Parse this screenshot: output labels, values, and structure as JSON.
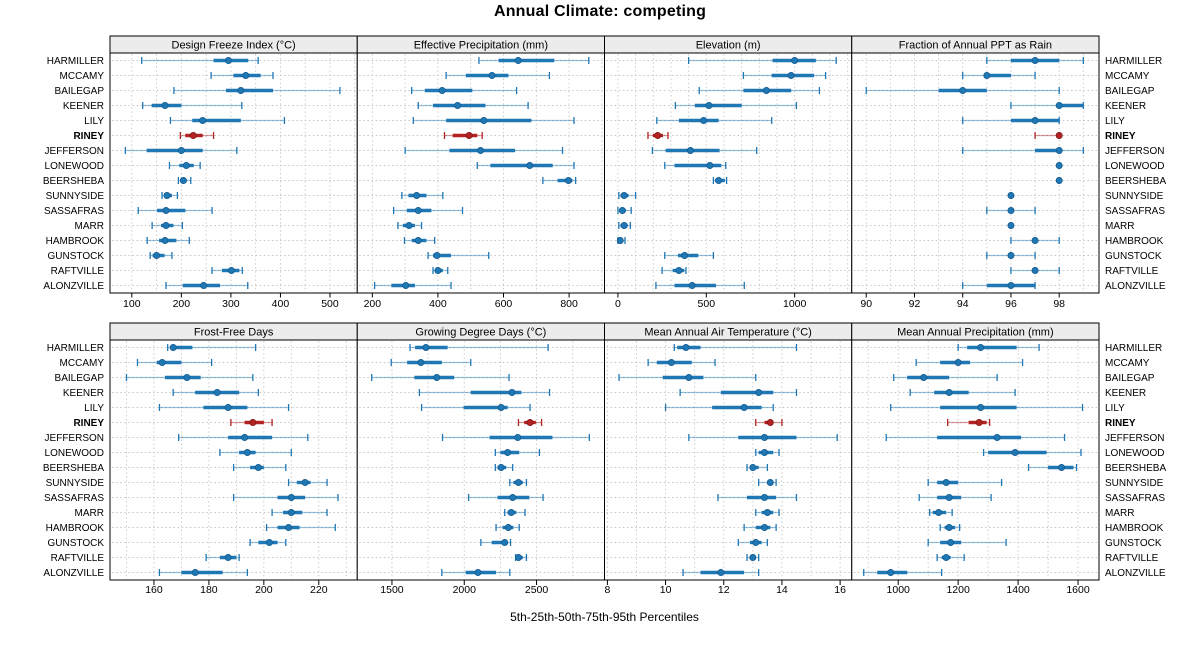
{
  "title": "Annual Climate: competing",
  "xlabel": "5th-25th-50th-75th-95th Percentiles",
  "colors": {
    "series_blue": "#1F77B4",
    "series_blue_dark": "#11568C",
    "highlight_red": "#B22222",
    "highlight_red_dark": "#7E1414",
    "grid": "#C6C6C6",
    "strip_bg": "#ECECEC",
    "border": "#000000",
    "text": "#000000"
  },
  "chart_data": {
    "type": "dotplot-percentiles",
    "percentile_labels": [
      "5th",
      "25th",
      "50th",
      "75th",
      "95th"
    ],
    "legend_position": "none",
    "grid": "dotted",
    "sites": [
      "HARMILLER",
      "MCCAMY",
      "BAILEGAP",
      "KEENER",
      "LILY",
      "RINEY",
      "JEFFERSON",
      "LONEWOOD",
      "BEERSHEBA",
      "SUNNYSIDE",
      "SASSAFRAS",
      "MARR",
      "HAMBROOK",
      "GUNSTOCK",
      "RAFTVILLE",
      "ALONZVILLE"
    ],
    "highlighted_site": "RINEY",
    "panels": [
      {
        "title": "Design Freeze Index (°C)",
        "row": 0,
        "col": 0,
        "xlim": [
          56,
          555
        ],
        "ticks": [
          100,
          200,
          300,
          400,
          500
        ],
        "grid_step": 50,
        "values": [
          [
            120,
            265,
            295,
            335,
            355
          ],
          [
            260,
            305,
            330,
            360,
            385
          ],
          [
            185,
            290,
            320,
            385,
            520
          ],
          [
            122,
            140,
            167,
            200,
            322
          ],
          [
            178,
            222,
            243,
            320,
            408
          ],
          [
            198,
            208,
            224,
            243,
            265
          ],
          [
            87,
            130,
            200,
            243,
            312
          ],
          [
            176,
            196,
            210,
            225,
            238
          ],
          [
            194,
            199,
            204,
            211,
            219
          ],
          [
            161,
            166,
            171,
            181,
            192
          ],
          [
            113,
            151,
            169,
            208,
            262
          ],
          [
            141,
            159,
            169,
            184,
            202
          ],
          [
            131,
            155,
            167,
            190,
            216
          ],
          [
            137,
            142,
            150,
            166,
            181
          ],
          [
            262,
            282,
            301,
            317,
            323
          ],
          [
            169,
            203,
            245,
            278,
            334
          ]
        ]
      },
      {
        "title": "Effective Precipitation (mm)",
        "row": 0,
        "col": 1,
        "xlim": [
          154,
          908
        ],
        "ticks": [
          200,
          400,
          600,
          800
        ],
        "grid_step": 100,
        "values": [
          [
            525,
            585,
            645,
            755,
            860
          ],
          [
            425,
            485,
            565,
            615,
            740
          ],
          [
            320,
            360,
            413,
            505,
            640
          ],
          [
            340,
            385,
            460,
            545,
            675
          ],
          [
            325,
            425,
            540,
            685,
            815
          ],
          [
            420,
            445,
            495,
            520,
            535
          ],
          [
            300,
            435,
            530,
            635,
            780
          ],
          [
            520,
            560,
            680,
            750,
            815
          ],
          [
            720,
            765,
            798,
            810,
            820
          ],
          [
            290,
            310,
            335,
            365,
            415
          ],
          [
            265,
            305,
            340,
            380,
            475
          ],
          [
            278,
            293,
            312,
            330,
            350
          ],
          [
            298,
            320,
            340,
            365,
            390
          ],
          [
            370,
            385,
            397,
            440,
            555
          ],
          [
            385,
            392,
            400,
            415,
            430
          ],
          [
            207,
            258,
            302,
            330,
            440
          ]
        ]
      },
      {
        "title": "Elevation (m)",
        "row": 0,
        "col": 2,
        "xlim": [
          -76,
          1323
        ],
        "ticks": [
          0,
          500,
          1000
        ],
        "grid_step": 100,
        "values": [
          [
            400,
            875,
            1000,
            1120,
            1235
          ],
          [
            710,
            870,
            980,
            1110,
            1175
          ],
          [
            460,
            710,
            840,
            980,
            1140
          ],
          [
            325,
            435,
            515,
            700,
            1010
          ],
          [
            220,
            345,
            485,
            570,
            870
          ],
          [
            170,
            198,
            225,
            255,
            283
          ],
          [
            195,
            270,
            410,
            575,
            785
          ],
          [
            265,
            320,
            520,
            585,
            610
          ],
          [
            540,
            550,
            570,
            605,
            615
          ],
          [
            5,
            15,
            35,
            60,
            100
          ],
          [
            0,
            10,
            25,
            45,
            75
          ],
          [
            5,
            15,
            35,
            55,
            70
          ],
          [
            0,
            5,
            13,
            25,
            40
          ],
          [
            265,
            340,
            377,
            455,
            540
          ],
          [
            250,
            310,
            345,
            375,
            385
          ],
          [
            215,
            320,
            420,
            555,
            715
          ]
        ]
      },
      {
        "title": "Fraction of Annual PPT as Rain",
        "row": 0,
        "col": 3,
        "xlim": [
          89.4,
          99.65
        ],
        "ticks": [
          90,
          92,
          94,
          96,
          98
        ],
        "grid_step": 1,
        "values": [
          [
            95,
            96,
            97,
            98,
            99
          ],
          [
            94,
            95,
            95,
            96,
            97
          ],
          [
            90,
            93,
            94,
            95,
            98
          ],
          [
            96,
            98,
            98,
            99,
            99
          ],
          [
            94,
            96,
            97,
            98,
            98
          ],
          [
            97,
            98,
            98,
            98,
            98
          ],
          [
            94,
            97,
            98,
            98,
            99
          ],
          [
            98,
            98,
            98,
            98,
            98
          ],
          [
            98,
            98,
            98,
            98,
            98
          ],
          [
            96,
            96,
            96,
            96,
            96
          ],
          [
            95,
            96,
            96,
            96,
            97
          ],
          [
            96,
            96,
            96,
            96,
            96
          ],
          [
            96,
            97,
            97,
            97,
            98
          ],
          [
            95,
            96,
            96,
            96,
            97
          ],
          [
            96,
            97,
            97,
            97,
            98
          ],
          [
            94,
            95,
            96,
            97,
            97
          ]
        ]
      },
      {
        "title": "Frost-Free Days",
        "row": 1,
        "col": 0,
        "xlim": [
          144,
          234
        ],
        "ticks": [
          160,
          180,
          200,
          220
        ],
        "grid_step": 10,
        "values": [
          [
            165,
            166,
            167,
            174,
            197
          ],
          [
            154,
            161,
            163,
            170,
            181
          ],
          [
            150,
            164,
            172,
            177,
            196
          ],
          [
            167,
            175,
            183,
            191,
            198
          ],
          [
            162,
            178,
            187,
            194,
            209
          ],
          [
            188,
            193,
            196,
            200,
            203
          ],
          [
            169,
            187,
            193,
            203,
            216
          ],
          [
            184,
            191,
            194,
            197,
            210
          ],
          [
            189,
            195,
            198,
            200,
            208
          ],
          [
            209,
            212,
            215,
            217,
            223
          ],
          [
            189,
            205,
            210,
            215,
            227
          ],
          [
            203,
            207,
            210,
            214,
            223
          ],
          [
            201,
            205,
            209,
            213,
            226
          ],
          [
            195,
            198,
            202,
            205,
            208
          ],
          [
            179,
            184,
            187,
            190,
            191
          ],
          [
            162,
            170,
            175,
            185,
            194
          ]
        ]
      },
      {
        "title": "Growing Degree Days (°C)",
        "row": 1,
        "col": 1,
        "xlim": [
          1260,
          2970
        ],
        "ticks": [
          1500,
          2000,
          2500
        ],
        "grid_step": 250,
        "values": [
          [
            1625,
            1660,
            1735,
            1885,
            2580
          ],
          [
            1495,
            1605,
            1700,
            1845,
            2045
          ],
          [
            1360,
            1655,
            1810,
            1930,
            2310
          ],
          [
            1690,
            2045,
            2330,
            2395,
            2590
          ],
          [
            1705,
            1995,
            2255,
            2300,
            2455
          ],
          [
            2375,
            2415,
            2455,
            2495,
            2535
          ],
          [
            1850,
            2175,
            2370,
            2610,
            2865
          ],
          [
            2215,
            2250,
            2300,
            2380,
            2520
          ],
          [
            2215,
            2230,
            2255,
            2290,
            2335
          ],
          [
            2315,
            2340,
            2375,
            2405,
            2430
          ],
          [
            2030,
            2230,
            2335,
            2450,
            2545
          ],
          [
            2280,
            2300,
            2325,
            2360,
            2420
          ],
          [
            2220,
            2265,
            2305,
            2340,
            2380
          ],
          [
            2115,
            2190,
            2280,
            2300,
            2320
          ],
          [
            2355,
            2360,
            2375,
            2405,
            2430
          ],
          [
            1845,
            2010,
            2095,
            2220,
            2315
          ]
        ]
      },
      {
        "title": "Mean Annual Air Temperature (°C)",
        "row": 1,
        "col": 2,
        "xlim": [
          7.9,
          16.4
        ],
        "ticks": [
          8,
          10,
          12,
          14,
          16
        ],
        "grid_step": 1,
        "values": [
          [
            10.3,
            10.4,
            10.7,
            11.2,
            14.5
          ],
          [
            9.4,
            9.7,
            10.2,
            10.9,
            11.7
          ],
          [
            8.4,
            9.9,
            10.8,
            11.3,
            13.1
          ],
          [
            10.5,
            11.9,
            13.2,
            13.7,
            14.5
          ],
          [
            10.0,
            11.6,
            12.7,
            13.3,
            13.7
          ],
          [
            13.1,
            13.4,
            13.6,
            13.7,
            14.0
          ],
          [
            10.8,
            12.5,
            13.4,
            14.5,
            15.9
          ],
          [
            13.1,
            13.2,
            13.4,
            13.7,
            13.9
          ],
          [
            12.8,
            12.9,
            13.0,
            13.2,
            13.5
          ],
          [
            13.2,
            13.5,
            13.6,
            13.7,
            13.8
          ],
          [
            11.8,
            12.8,
            13.4,
            13.8,
            14.5
          ],
          [
            13.1,
            13.3,
            13.5,
            13.7,
            13.9
          ],
          [
            12.7,
            13.1,
            13.4,
            13.6,
            13.8
          ],
          [
            12.5,
            12.9,
            13.1,
            13.3,
            13.5
          ],
          [
            12.8,
            12.9,
            13.0,
            13.1,
            13.2
          ],
          [
            10.6,
            11.2,
            11.9,
            12.7,
            13.2
          ]
        ]
      },
      {
        "title": "Mean Annual Precipitation (mm)",
        "row": 1,
        "col": 3,
        "xlim": [
          845,
          1670
        ],
        "ticks": [
          1000,
          1200,
          1400,
          1600
        ],
        "grid_step": 100,
        "values": [
          [
            1200,
            1230,
            1275,
            1395,
            1470
          ],
          [
            1060,
            1140,
            1200,
            1240,
            1415
          ],
          [
            985,
            1030,
            1085,
            1170,
            1330
          ],
          [
            1040,
            1120,
            1170,
            1235,
            1390
          ],
          [
            975,
            1140,
            1275,
            1395,
            1615
          ],
          [
            1165,
            1235,
            1270,
            1295,
            1305
          ],
          [
            960,
            1130,
            1330,
            1410,
            1555
          ],
          [
            1285,
            1300,
            1390,
            1495,
            1610
          ],
          [
            1435,
            1500,
            1545,
            1585,
            1595
          ],
          [
            1100,
            1130,
            1160,
            1200,
            1345
          ],
          [
            1070,
            1130,
            1170,
            1210,
            1310
          ],
          [
            1105,
            1115,
            1135,
            1160,
            1180
          ],
          [
            1140,
            1155,
            1170,
            1190,
            1205
          ],
          [
            1100,
            1140,
            1175,
            1210,
            1360
          ],
          [
            1130,
            1145,
            1160,
            1175,
            1220
          ],
          [
            885,
            930,
            975,
            1030,
            1145
          ]
        ]
      }
    ]
  }
}
